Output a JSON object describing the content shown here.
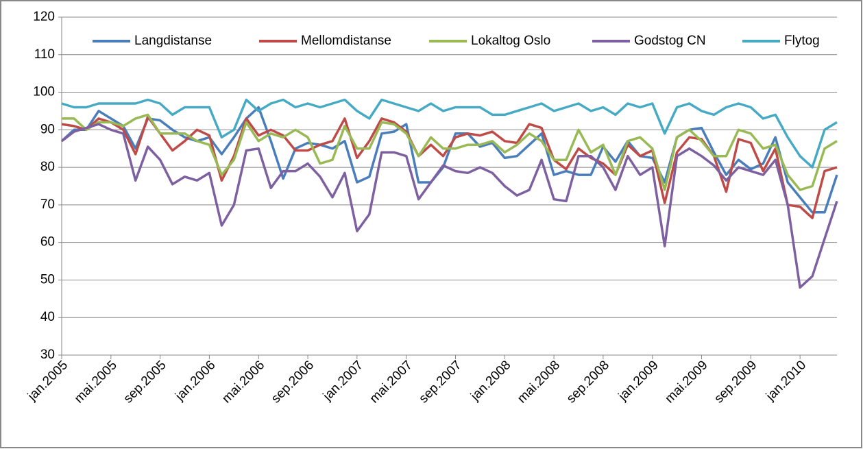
{
  "chart_data": {
    "type": "line",
    "categories": [
      "jan.2005",
      null,
      null,
      null,
      "mai.2005",
      null,
      null,
      null,
      "sep.2005",
      null,
      null,
      null,
      "jan.2006",
      null,
      null,
      null,
      "mai.2006",
      null,
      null,
      null,
      "sep.2006",
      null,
      null,
      null,
      "jan.2007",
      null,
      null,
      null,
      "mai.2007",
      null,
      null,
      null,
      "sep.2007",
      null,
      null,
      null,
      "jan.2008",
      null,
      null,
      null,
      "mai.2008",
      null,
      null,
      null,
      "sep.2008",
      null,
      null,
      null,
      "jan.2009",
      null,
      null,
      null,
      "mai.2009",
      null,
      null,
      null,
      "sep.2009",
      null,
      null,
      null,
      "jan.2010",
      null,
      null,
      null
    ],
    "series": [
      {
        "name": "Langdistanse",
        "color": "#4a7ebb",
        "values": [
          87,
          90,
          90,
          95,
          93,
          91,
          85,
          93,
          92.5,
          90,
          88,
          87,
          88,
          83.5,
          88,
          93,
          96,
          87,
          77,
          85,
          86.5,
          86,
          85,
          87,
          76,
          77.5,
          89,
          89.5,
          91.5,
          76,
          76,
          80,
          89,
          89,
          85.5,
          86.5,
          82.5,
          83,
          86,
          89,
          78,
          79,
          78,
          78,
          85.5,
          81.5,
          87,
          83,
          82.5,
          76,
          88,
          90,
          90.5,
          84,
          78,
          82,
          79.5,
          81,
          88,
          76,
          72,
          68,
          68,
          78
        ]
      },
      {
        "name": "Mellomdistanse",
        "color": "#be4b48",
        "values": [
          91.5,
          91,
          90,
          93,
          92,
          90,
          83.5,
          93.5,
          89,
          84.5,
          87,
          90,
          88.5,
          76.5,
          83,
          93,
          88.5,
          90,
          88.5,
          84.5,
          84.5,
          86,
          87,
          93,
          82.5,
          87,
          93,
          92,
          89.5,
          83,
          86,
          83,
          88,
          89,
          88.5,
          89.5,
          87,
          86.5,
          91.5,
          90.5,
          82,
          79.5,
          85,
          82.5,
          81,
          78,
          86,
          83,
          84.5,
          70.5,
          84,
          88,
          87.5,
          83,
          73.5,
          87.5,
          86.5,
          79,
          85,
          70,
          69.5,
          66.5,
          79,
          80
        ]
      },
      {
        "name": "Lokaltog Oslo",
        "color": "#98b954",
        "values": [
          93,
          93,
          90,
          92,
          92,
          91,
          93,
          94,
          89,
          89,
          89,
          87,
          86,
          78,
          82,
          92,
          87,
          89,
          88,
          90,
          88,
          81,
          82,
          91,
          85,
          85,
          92,
          91.5,
          89,
          83,
          88,
          85,
          85,
          86,
          86,
          87,
          84,
          86,
          89,
          87,
          82,
          82,
          90,
          84,
          86,
          78,
          87,
          88,
          85,
          74,
          88,
          90,
          87,
          83,
          83,
          90,
          89,
          85,
          86,
          78,
          74,
          75,
          85,
          87
        ]
      },
      {
        "name": "Godstog CN",
        "color": "#7d60a0",
        "values": [
          87,
          89.5,
          90.5,
          91.5,
          90,
          89,
          76.5,
          85.5,
          82,
          75.5,
          77.5,
          76.5,
          78.5,
          64.5,
          70,
          84.5,
          85,
          74.5,
          79,
          79,
          81,
          77.5,
          72,
          78.5,
          63,
          67.5,
          84,
          84,
          83,
          71.5,
          76,
          80.5,
          79,
          78.5,
          80,
          78.5,
          75,
          72.5,
          74,
          82,
          71.5,
          71,
          83,
          83,
          80,
          74,
          83,
          78,
          80,
          59,
          83,
          85,
          83,
          80.5,
          76.5,
          80,
          79,
          78,
          82,
          70,
          48,
          51,
          61,
          71
        ]
      },
      {
        "name": "Flytog",
        "color": "#46aac5",
        "values": [
          97,
          96,
          96,
          97,
          97,
          97,
          97,
          98,
          97,
          94,
          96,
          96,
          96,
          88,
          90,
          98,
          95,
          97,
          98,
          96,
          97,
          96,
          97,
          98,
          95,
          93,
          98,
          97,
          96,
          95,
          97,
          95,
          96,
          96,
          96,
          94,
          94,
          95,
          96,
          97,
          95,
          96,
          97,
          95,
          96,
          94,
          97,
          96,
          97,
          89,
          96,
          97,
          95,
          94,
          96,
          97,
          96,
          93,
          94,
          88,
          83,
          80,
          90,
          92
        ]
      }
    ],
    "ylim": [
      30,
      120
    ],
    "yticks": [
      30,
      40,
      50,
      60,
      70,
      80,
      90,
      100,
      110,
      120
    ],
    "grid": true,
    "legend": "top"
  }
}
